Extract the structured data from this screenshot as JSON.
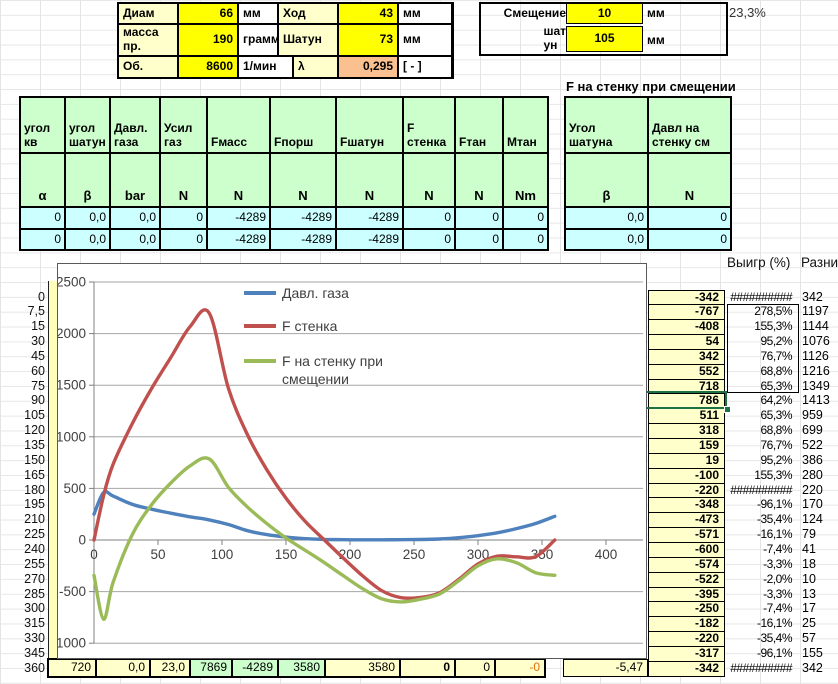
{
  "params": {
    "rows": [
      {
        "cells": [
          "Диам",
          "66",
          "мм",
          "Ход",
          "43",
          "мм"
        ]
      },
      {
        "cells": [
          "масса\nпр.",
          "190",
          "грамм",
          "Шатун",
          "73",
          "мм"
        ]
      },
      {
        "cells": [
          "Об.",
          "8600",
          "1/мин",
          "λ",
          "0,295",
          "[ - ]"
        ]
      }
    ]
  },
  "offset": {
    "label_line1": "Смещение",
    "label_line2": "шат\nун",
    "value1": "10",
    "unit1": "мм",
    "value2": "105",
    "unit2": "мм",
    "side_pct": "23,3%"
  },
  "main_table": {
    "headers": [
      "угол\nкв",
      "угол\nшатун",
      "Давл.\nгаза",
      "Усил\nгаз",
      "Fмасс",
      "Fпорш",
      "Fшатун",
      "F\nстенка",
      "Fтан",
      "Мтан"
    ],
    "units": [
      "α",
      "β",
      "bar",
      "N",
      "N",
      "N",
      "N",
      "N",
      "N",
      "Nm"
    ],
    "rows": [
      [
        "0",
        "0,0",
        "0,0",
        "0",
        "-4289",
        "-4289",
        "-4289",
        "0",
        "0",
        "0"
      ],
      [
        "0",
        "0,0",
        "0,0",
        "0",
        "-4289",
        "-4289",
        "-4289",
        "0",
        "0",
        "0"
      ]
    ]
  },
  "wall_table": {
    "title": "F на стенку при смещении",
    "headers": [
      "Угол\nшатуна",
      "Давл на\nстенку см"
    ],
    "units": [
      "β",
      "N"
    ],
    "rows": [
      [
        "0,0",
        "0"
      ],
      [
        "0,0",
        "0"
      ]
    ]
  },
  "right_cols": {
    "header_pct": "Выигр (%)",
    "header_diff": "Разни",
    "rows": [
      {
        "angle": "0",
        "wall": "-342",
        "pct": "##########",
        "diff": "342"
      },
      {
        "angle": "7,5",
        "wall": "-767",
        "pct": "278,5%",
        "diff": "1197"
      },
      {
        "angle": "15",
        "wall": "-408",
        "pct": "155,3%",
        "diff": "1144"
      },
      {
        "angle": "30",
        "wall": "54",
        "pct": "95,2%",
        "diff": "1076"
      },
      {
        "angle": "45",
        "wall": "342",
        "pct": "76,7%",
        "diff": "1126"
      },
      {
        "angle": "60",
        "wall": "552",
        "pct": "68,8%",
        "diff": "1216"
      },
      {
        "angle": "75",
        "wall": "718",
        "pct": "65,3%",
        "diff": "1349"
      },
      {
        "angle": "90",
        "wall": "786",
        "pct": "64,2%",
        "diff": "1413"
      },
      {
        "angle": "105",
        "wall": "511",
        "pct": "65,3%",
        "diff": "959"
      },
      {
        "angle": "120",
        "wall": "318",
        "pct": "68,8%",
        "diff": "699"
      },
      {
        "angle": "135",
        "wall": "159",
        "pct": "76,7%",
        "diff": "522"
      },
      {
        "angle": "150",
        "wall": "19",
        "pct": "95,2%",
        "diff": "386"
      },
      {
        "angle": "165",
        "wall": "-100",
        "pct": "155,3%",
        "diff": "280"
      },
      {
        "angle": "180",
        "wall": "-220",
        "pct": "##########",
        "diff": "220"
      },
      {
        "angle": "195",
        "wall": "-348",
        "pct": "-96,1%",
        "diff": "170"
      },
      {
        "angle": "210",
        "wall": "-473",
        "pct": "-35,4%",
        "diff": "124"
      },
      {
        "angle": "225",
        "wall": "-571",
        "pct": "-16,1%",
        "diff": "79"
      },
      {
        "angle": "240",
        "wall": "-600",
        "pct": "-7,4%",
        "diff": "41"
      },
      {
        "angle": "255",
        "wall": "-574",
        "pct": "-3,3%",
        "diff": "18"
      },
      {
        "angle": "270",
        "wall": "-522",
        "pct": "-2,0%",
        "diff": "10"
      },
      {
        "angle": "285",
        "wall": "-395",
        "pct": "-3,3%",
        "diff": "13"
      },
      {
        "angle": "300",
        "wall": "-250",
        "pct": "-7,4%",
        "diff": "17"
      },
      {
        "angle": "315",
        "wall": "-182",
        "pct": "-16,1%",
        "diff": "25"
      },
      {
        "angle": "330",
        "wall": "-220",
        "pct": "-35,4%",
        "diff": "57"
      },
      {
        "angle": "345",
        "wall": "-317",
        "pct": "-96,1%",
        "diff": "155"
      },
      {
        "angle": "360",
        "wall": "-342",
        "pct": "##########",
        "diff": "342"
      }
    ]
  },
  "bottom_row": {
    "cells": [
      "720",
      "0,0",
      "23,0",
      "7869",
      "-4289",
      "3580",
      "3580",
      "0",
      "0",
      "-0"
    ],
    "extra": "-5,47"
  },
  "chart_data": {
    "type": "line",
    "x": [
      0,
      7.5,
      15,
      30,
      45,
      60,
      75,
      90,
      105,
      120,
      135,
      150,
      165,
      180,
      195,
      210,
      225,
      240,
      255,
      270,
      285,
      300,
      315,
      330,
      345,
      360
    ],
    "series": [
      {
        "name": "Давл. газа",
        "color": "#4f81bd",
        "values": [
          250,
          460,
          425,
          345,
          298,
          260,
          225,
          195,
          150,
          90,
          52,
          28,
          13,
          6,
          3,
          2,
          2,
          3,
          5,
          10,
          22,
          42,
          70,
          110,
          160,
          230
        ]
      },
      {
        "name": "F стенка",
        "color": "#c0504d",
        "values": [
          0,
          430,
          736,
          1130,
          1468,
          1768,
          2067,
          2199,
          1470,
          1017,
          681,
          405,
          180,
          0,
          -178,
          -349,
          -492,
          -559,
          -556,
          -512,
          -382,
          -233,
          -157,
          -163,
          -162,
          0
        ]
      },
      {
        "name": "F на стенку при смещении",
        "color": "#9bbb59",
        "values": [
          -342,
          -767,
          -408,
          54,
          342,
          552,
          718,
          786,
          511,
          318,
          159,
          19,
          -100,
          -220,
          -348,
          -473,
          -571,
          -600,
          -574,
          -522,
          -395,
          -250,
          -182,
          -220,
          -317,
          -342
        ]
      }
    ],
    "xlim": [
      0,
      400
    ],
    "ylim": [
      -1000,
      2500
    ],
    "xticks": [
      0,
      50,
      100,
      150,
      200,
      250,
      300,
      350,
      400
    ],
    "yticks": [
      -1000,
      -500,
      0,
      500,
      1000,
      1500,
      2000,
      2500
    ],
    "grid": true,
    "legend_position": "inside-top"
  },
  "colors": {
    "accent_yellow": "#ffff00",
    "pale_yellow": "#ffffcc",
    "header_green": "#ccffcc",
    "data_cyan": "#ccffff",
    "salmon": "#fac08f",
    "selection_green": "#1e7145",
    "negative_red": "#e26b0a",
    "grid_gray": "#a6a6a6"
  }
}
